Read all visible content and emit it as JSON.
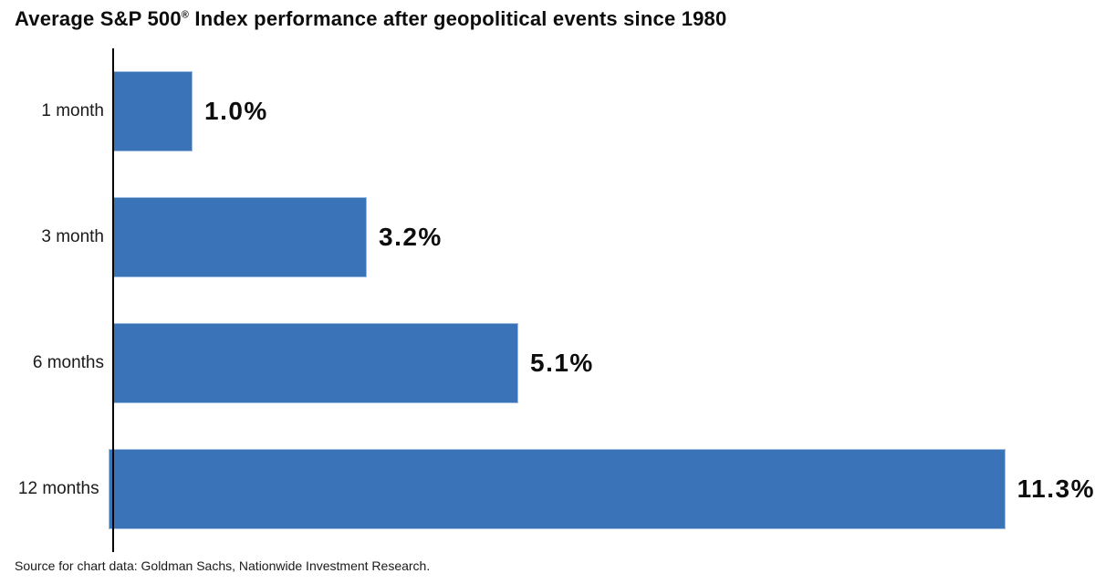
{
  "header": {
    "title_main": "Average S&P 500",
    "title_reg": "®",
    "title_rest": " Index performance after geopolitical events since 1980"
  },
  "footer": {
    "source_note": "Source for chart data: Goldman Sachs, Nationwide Investment Research."
  },
  "chart_data": {
    "type": "bar",
    "orientation": "horizontal",
    "title": "Average S&P 500® Index performance after geopolitical events since 1980",
    "categories": [
      "1 month",
      "3 month",
      "6 months",
      "12 months"
    ],
    "values": [
      1.0,
      3.2,
      5.1,
      11.3
    ],
    "value_labels": [
      "1.0%",
      "3.2%",
      "5.1%",
      "11.3%"
    ],
    "xlabel": "",
    "ylabel": "",
    "xlim": [
      0,
      12.3
    ],
    "grid": false,
    "legend": false,
    "bar_color": "#3B73B9",
    "bar_edge_color": "#9dbce0",
    "axis_color": "#000000",
    "source_note": "Source for chart data: Goldman Sachs, Nationwide Investment Research."
  }
}
